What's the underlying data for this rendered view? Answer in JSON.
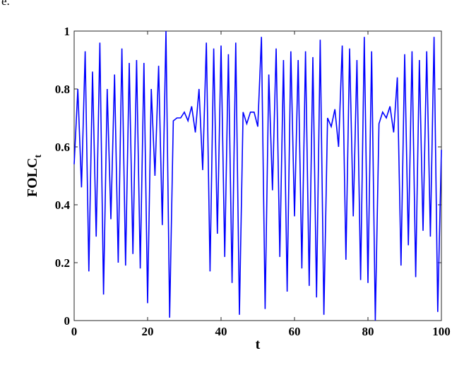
{
  "page": {
    "top_text": "e."
  },
  "chart_data": {
    "type": "line",
    "title": "",
    "xlabel": "t",
    "ylabel": {
      "main": "FOLC",
      "sub": "t"
    },
    "xlim": [
      0,
      100
    ],
    "ylim": [
      0,
      1
    ],
    "xticks": [
      "0",
      "20",
      "40",
      "60",
      "80",
      "100"
    ],
    "yticks": [
      "0",
      "0.2",
      "0.4",
      "0.6",
      "0.8",
      "1"
    ],
    "grid": false,
    "legend": "none",
    "series": [
      {
        "color": "#0000ff",
        "x": [
          0,
          1,
          2,
          3,
          4,
          5,
          6,
          7,
          8,
          9,
          10,
          11,
          12,
          13,
          14,
          15,
          16,
          17,
          18,
          19,
          20,
          21,
          22,
          23,
          24,
          25,
          26,
          27,
          28,
          29,
          30,
          31,
          32,
          33,
          34,
          35,
          36,
          37,
          38,
          39,
          40,
          41,
          42,
          43,
          44,
          45,
          46,
          47,
          48,
          49,
          50,
          51,
          52,
          53,
          54,
          55,
          56,
          57,
          58,
          59,
          60,
          61,
          62,
          63,
          64,
          65,
          66,
          67,
          68,
          69,
          70,
          71,
          72,
          73,
          74,
          75,
          76,
          77,
          78,
          79,
          80,
          81,
          82,
          83,
          84,
          85,
          86,
          87,
          88,
          89,
          90,
          91,
          92,
          93,
          94,
          95,
          96,
          97,
          98,
          99,
          100
        ],
        "y": [
          0.54,
          0.8,
          0.46,
          0.93,
          0.17,
          0.86,
          0.29,
          0.96,
          0.09,
          0.8,
          0.35,
          0.85,
          0.2,
          0.94,
          0.19,
          0.89,
          0.23,
          0.9,
          0.18,
          0.89,
          0.06,
          0.8,
          0.5,
          0.88,
          0.33,
          1.0,
          0.01,
          0.69,
          0.7,
          0.7,
          0.72,
          0.69,
          0.74,
          0.65,
          0.8,
          0.52,
          0.96,
          0.17,
          0.94,
          0.3,
          0.95,
          0.22,
          0.92,
          0.13,
          0.96,
          0.02,
          0.72,
          0.68,
          0.72,
          0.72,
          0.67,
          0.98,
          0.04,
          0.85,
          0.45,
          0.94,
          0.22,
          0.9,
          0.1,
          0.93,
          0.36,
          0.9,
          0.18,
          0.93,
          0.12,
          0.91,
          0.08,
          0.97,
          0.02,
          0.7,
          0.67,
          0.73,
          0.6,
          0.95,
          0.21,
          0.94,
          0.36,
          0.9,
          0.14,
          0.98,
          0.13,
          0.93,
          0.0,
          0.68,
          0.72,
          0.7,
          0.74,
          0.65,
          0.84,
          0.19,
          0.92,
          0.26,
          0.93,
          0.15,
          0.9,
          0.31,
          0.93,
          0.29,
          0.98,
          0.03,
          0.59
        ]
      }
    ]
  }
}
